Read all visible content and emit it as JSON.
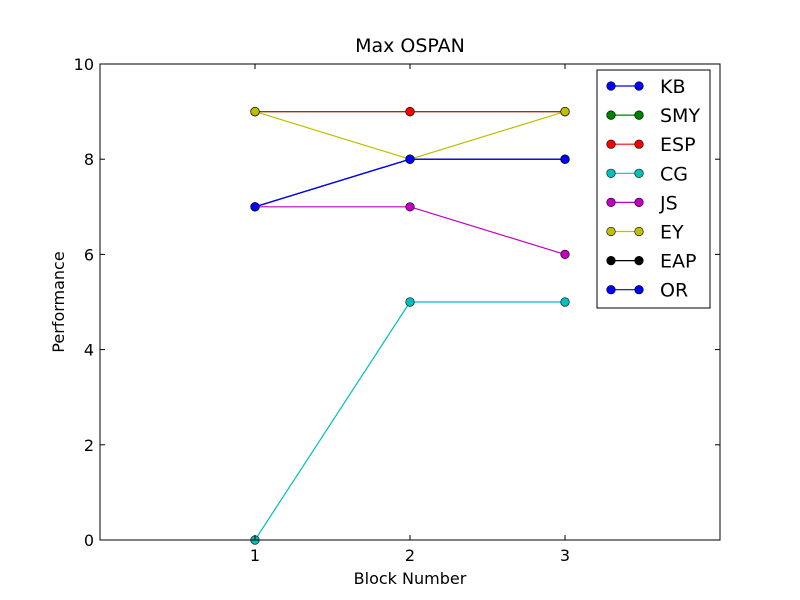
{
  "chart_data": {
    "type": "line",
    "title": "Max OSPAN",
    "xlabel": "Block Number",
    "ylabel": "Performance",
    "xlim": [
      0,
      4
    ],
    "ylim": [
      0,
      10
    ],
    "x_ticks": [
      1,
      2,
      3
    ],
    "y_ticks": [
      0,
      2,
      4,
      6,
      8,
      10
    ],
    "grid": false,
    "legend_position": "top-right",
    "x": [
      1,
      2,
      3
    ],
    "series": [
      {
        "name": "KB",
        "color": "#0000ff",
        "values": [
          7,
          8,
          8
        ]
      },
      {
        "name": "SMY",
        "color": "#008000",
        "values": [
          9,
          9,
          9
        ]
      },
      {
        "name": "ESP",
        "color": "#ff0000",
        "values": [
          9,
          9,
          9
        ]
      },
      {
        "name": "CG",
        "color": "#00bfbf",
        "values": [
          0,
          5,
          5
        ]
      },
      {
        "name": "JS",
        "color": "#bf00bf",
        "values": [
          7,
          7,
          6
        ]
      },
      {
        "name": "EY",
        "color": "#bfbf00",
        "values": [
          9,
          8,
          9
        ]
      },
      {
        "name": "EAP",
        "color": "#000000",
        "values": [
          7,
          8,
          8
        ]
      },
      {
        "name": "OR",
        "color": "#0000ff",
        "values": [
          7,
          8,
          8
        ]
      }
    ]
  }
}
